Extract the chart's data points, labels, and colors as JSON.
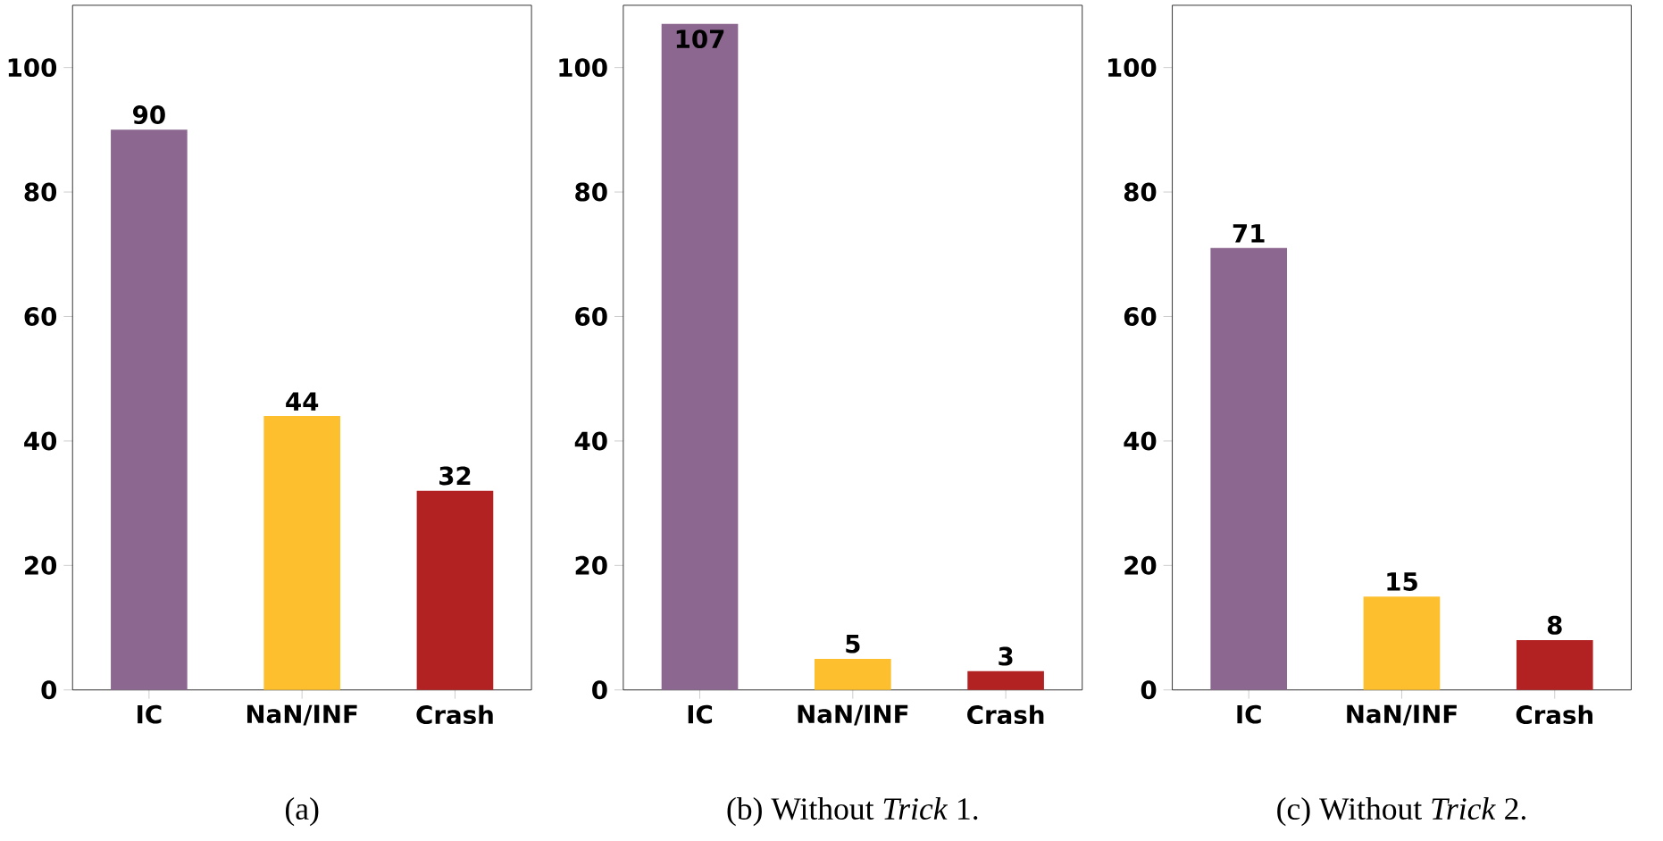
{
  "chart_data": [
    {
      "type": "bar",
      "annotations": [
        "(a)"
      ],
      "categories": [
        "IC",
        "NaN/INF",
        "Crash"
      ],
      "values": [
        90,
        44,
        32
      ],
      "colors": [
        "#8c6890",
        "#fdbf2d",
        "#b22222"
      ],
      "ylim": [
        0,
        110
      ],
      "yticks": [
        0,
        20,
        40,
        60,
        80,
        100
      ],
      "data_labels": true
    },
    {
      "type": "bar",
      "annotations": [
        "(b) Without *Trick* 1."
      ],
      "categories": [
        "IC",
        "NaN/INF",
        "Crash"
      ],
      "values": [
        107,
        5,
        3
      ],
      "colors": [
        "#8c6890",
        "#fdbf2d",
        "#b22222"
      ],
      "ylim": [
        0,
        110
      ],
      "yticks": [
        0,
        20,
        40,
        60,
        80,
        100
      ],
      "data_labels": true
    },
    {
      "type": "bar",
      "annotations": [
        "(c) Without *Trick* 2."
      ],
      "categories": [
        "IC",
        "NaN/INF",
        "Crash"
      ],
      "values": [
        71,
        15,
        8
      ],
      "colors": [
        "#8c6890",
        "#fdbf2d",
        "#b22222"
      ],
      "ylim": [
        0,
        110
      ],
      "yticks": [
        0,
        20,
        40,
        60,
        80,
        100
      ],
      "data_labels": true
    }
  ]
}
